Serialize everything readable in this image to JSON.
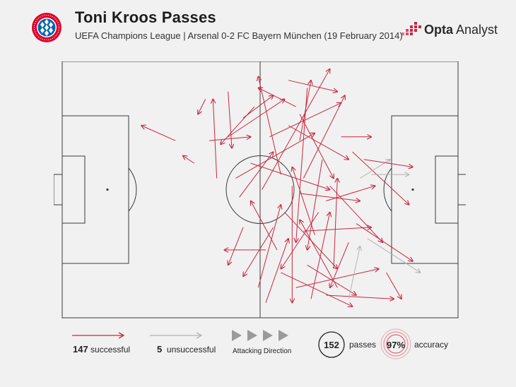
{
  "header": {
    "title": "Toni Kroos Passes",
    "subtitle": "UEFA Champions League | Arsenal 0-2 FC Bayern München (19 February 2014)",
    "brand_bold": "Opta",
    "brand_rest": " Analyst",
    "crest_icon": "fc-bayern-crest-icon",
    "brand_icon": "opta-logo-icon"
  },
  "legend": {
    "successful_count": "147",
    "successful_label": "successful",
    "unsuccessful_count": "5",
    "unsuccessful_label": "unsuccessful",
    "direction_label": "Attacking Direction",
    "passes_count": "152",
    "passes_label": "passes",
    "accuracy_value": "97%",
    "accuracy_label": "accuracy"
  },
  "colors": {
    "successful": "#c8283f",
    "unsuccessful": "#b4b4b4",
    "pitch_lines": "#3a3a3a",
    "accuracy_ring": "#d9455a"
  },
  "chart_data": {
    "type": "pass-map",
    "attacking_direction": "left-to-right",
    "pitch_length_m": 105,
    "pitch_width_m": 68,
    "passes": [
      {
        "x0": 30,
        "y0": 21,
        "x1": 21,
        "y1": 17,
        "success": true
      },
      {
        "x0": 35,
        "y0": 27,
        "x1": 32,
        "y1": 25,
        "success": true
      },
      {
        "x0": 38,
        "y0": 10,
        "x1": 36,
        "y1": 14,
        "success": true
      },
      {
        "x0": 39,
        "y0": 21,
        "x1": 50,
        "y1": 20,
        "success": true
      },
      {
        "x0": 41,
        "y0": 31,
        "x1": 40,
        "y1": 10,
        "success": true
      },
      {
        "x0": 44,
        "y0": 8,
        "x1": 45,
        "y1": 23,
        "success": true
      },
      {
        "x0": 46,
        "y0": 31,
        "x1": 67,
        "y1": 19,
        "success": true
      },
      {
        "x0": 48,
        "y0": 15,
        "x1": 56,
        "y1": 9,
        "success": true
      },
      {
        "x0": 50,
        "y0": 27,
        "x1": 71,
        "y1": 34,
        "success": true
      },
      {
        "x0": 51,
        "y0": 12,
        "x1": 42,
        "y1": 22,
        "success": true
      },
      {
        "x0": 53,
        "y0": 34,
        "x1": 71,
        "y1": 2,
        "success": true
      },
      {
        "x0": 54,
        "y0": 50,
        "x1": 43,
        "y1": 50,
        "success": true
      },
      {
        "x0": 55,
        "y0": 20,
        "x1": 74,
        "y1": 11,
        "success": true
      },
      {
        "x0": 57,
        "y0": 50,
        "x1": 50,
        "y1": 37,
        "success": true
      },
      {
        "x0": 58,
        "y0": 30,
        "x1": 52,
        "y1": 4,
        "success": true
      },
      {
        "x0": 59,
        "y0": 40,
        "x1": 73,
        "y1": 55,
        "success": true
      },
      {
        "x0": 60,
        "y0": 17,
        "x1": 76,
        "y1": 26,
        "success": true
      },
      {
        "x0": 61,
        "y0": 33,
        "x1": 61,
        "y1": 64,
        "success": true
      },
      {
        "x0": 62,
        "y0": 12,
        "x1": 52,
        "y1": 7,
        "success": true
      },
      {
        "x0": 63,
        "y0": 21,
        "x1": 66,
        "y1": 5,
        "success": true
      },
      {
        "x0": 63,
        "y0": 14,
        "x1": 72,
        "y1": 31,
        "success": true
      },
      {
        "x0": 63,
        "y0": 35,
        "x1": 79,
        "y1": 37,
        "success": true
      },
      {
        "x0": 64,
        "y0": 31,
        "x1": 75,
        "y1": 9,
        "success": true
      },
      {
        "x0": 65,
        "y0": 7,
        "x1": 62,
        "y1": 48,
        "success": true
      },
      {
        "x0": 67,
        "y0": 46,
        "x1": 61,
        "y1": 28,
        "success": true
      },
      {
        "x0": 69,
        "y0": 26,
        "x1": 65,
        "y1": 50,
        "success": true
      },
      {
        "x0": 70,
        "y0": 37,
        "x1": 83,
        "y1": 33,
        "success": true
      },
      {
        "x0": 71,
        "y0": 33,
        "x1": 85,
        "y1": 48,
        "success": true
      },
      {
        "x0": 72,
        "y0": 55,
        "x1": 73,
        "y1": 31,
        "success": true
      },
      {
        "x0": 74,
        "y0": 20,
        "x1": 82,
        "y1": 20,
        "success": true
      },
      {
        "x0": 76,
        "y0": 48,
        "x1": 71,
        "y1": 60,
        "success": true
      },
      {
        "x0": 77,
        "y0": 24,
        "x1": 92,
        "y1": 38,
        "success": true
      },
      {
        "x0": 78,
        "y0": 43,
        "x1": 93,
        "y1": 53,
        "success": true
      },
      {
        "x0": 79,
        "y0": 31,
        "x1": 87,
        "y1": 26,
        "success": false
      },
      {
        "x0": 80,
        "y0": 26,
        "x1": 93,
        "y1": 28,
        "success": true
      },
      {
        "x0": 81,
        "y0": 47,
        "x1": 95,
        "y1": 56,
        "success": false
      },
      {
        "x0": 82,
        "y0": 30,
        "x1": 92,
        "y1": 30,
        "success": false
      },
      {
        "x0": 68,
        "y0": 40,
        "x1": 58,
        "y1": 55,
        "success": true
      },
      {
        "x0": 65,
        "y0": 54,
        "x1": 78,
        "y1": 62,
        "success": true
      },
      {
        "x0": 56,
        "y0": 44,
        "x1": 48,
        "y1": 57,
        "success": true
      },
      {
        "x0": 62,
        "y0": 60,
        "x1": 84,
        "y1": 55,
        "success": true
      },
      {
        "x0": 73,
        "y0": 60,
        "x1": 63,
        "y1": 42,
        "success": true
      },
      {
        "x0": 48,
        "y0": 44,
        "x1": 44,
        "y1": 54,
        "success": true
      },
      {
        "x0": 52,
        "y0": 60,
        "x1": 58,
        "y1": 38,
        "success": true
      },
      {
        "x0": 70,
        "y0": 62,
        "x1": 88,
        "y1": 63,
        "success": true
      },
      {
        "x0": 58,
        "y0": 56,
        "x1": 77,
        "y1": 65,
        "success": true
      },
      {
        "x0": 86,
        "y0": 56,
        "x1": 90,
        "y1": 63,
        "success": true
      },
      {
        "x0": 60,
        "y0": 5,
        "x1": 73,
        "y1": 8,
        "success": true
      },
      {
        "x0": 44,
        "y0": 20,
        "x1": 59,
        "y1": 10,
        "success": true
      },
      {
        "x0": 47,
        "y0": 36,
        "x1": 56,
        "y1": 24,
        "success": true
      },
      {
        "x0": 66,
        "y0": 63,
        "x1": 71,
        "y1": 40,
        "success": true
      },
      {
        "x0": 54,
        "y0": 64,
        "x1": 60,
        "y1": 47,
        "success": true
      },
      {
        "x0": 76,
        "y0": 63,
        "x1": 79,
        "y1": 49,
        "success": false
      },
      {
        "x0": 64,
        "y0": 45,
        "x1": 82,
        "y1": 44,
        "success": true
      }
    ]
  }
}
